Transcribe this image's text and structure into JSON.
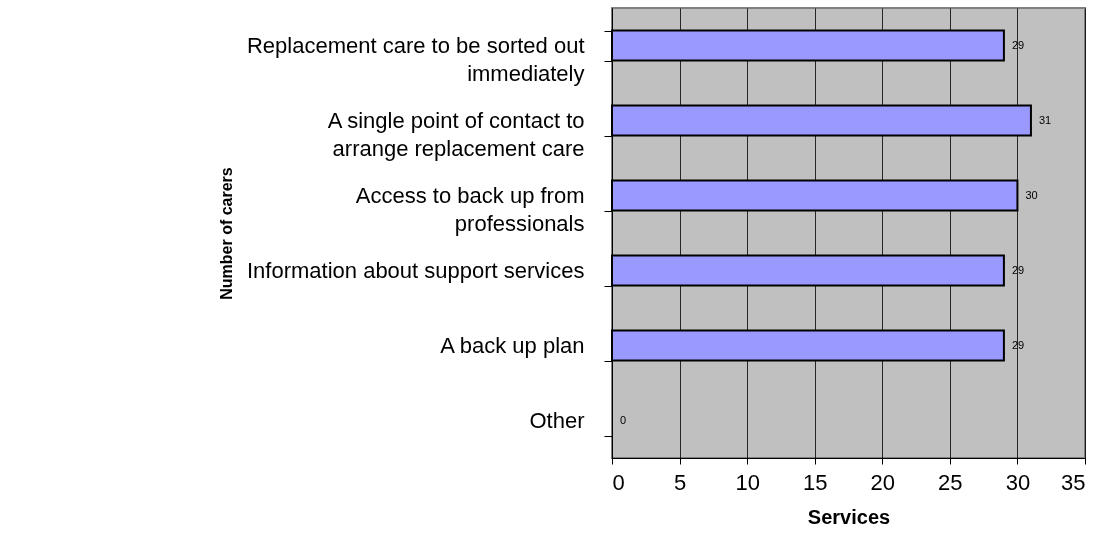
{
  "chart_data": {
    "type": "bar",
    "orientation": "horizontal",
    "xlabel": "Services",
    "ylabel": "Number of carers",
    "categories": [
      "Replacement care to be sorted out immediately",
      "A single point of contact to arrange replacement care",
      "Access to back up from professionals",
      "Information about support services",
      "A back up plan",
      "Other"
    ],
    "values": [
      29,
      31,
      30,
      29,
      29,
      0
    ],
    "color": "#9999ff",
    "xlim": [
      0,
      35
    ],
    "xticks": [
      0,
      5,
      10,
      15,
      20,
      25,
      30,
      35
    ],
    "grid": "x",
    "data_labels": true
  }
}
